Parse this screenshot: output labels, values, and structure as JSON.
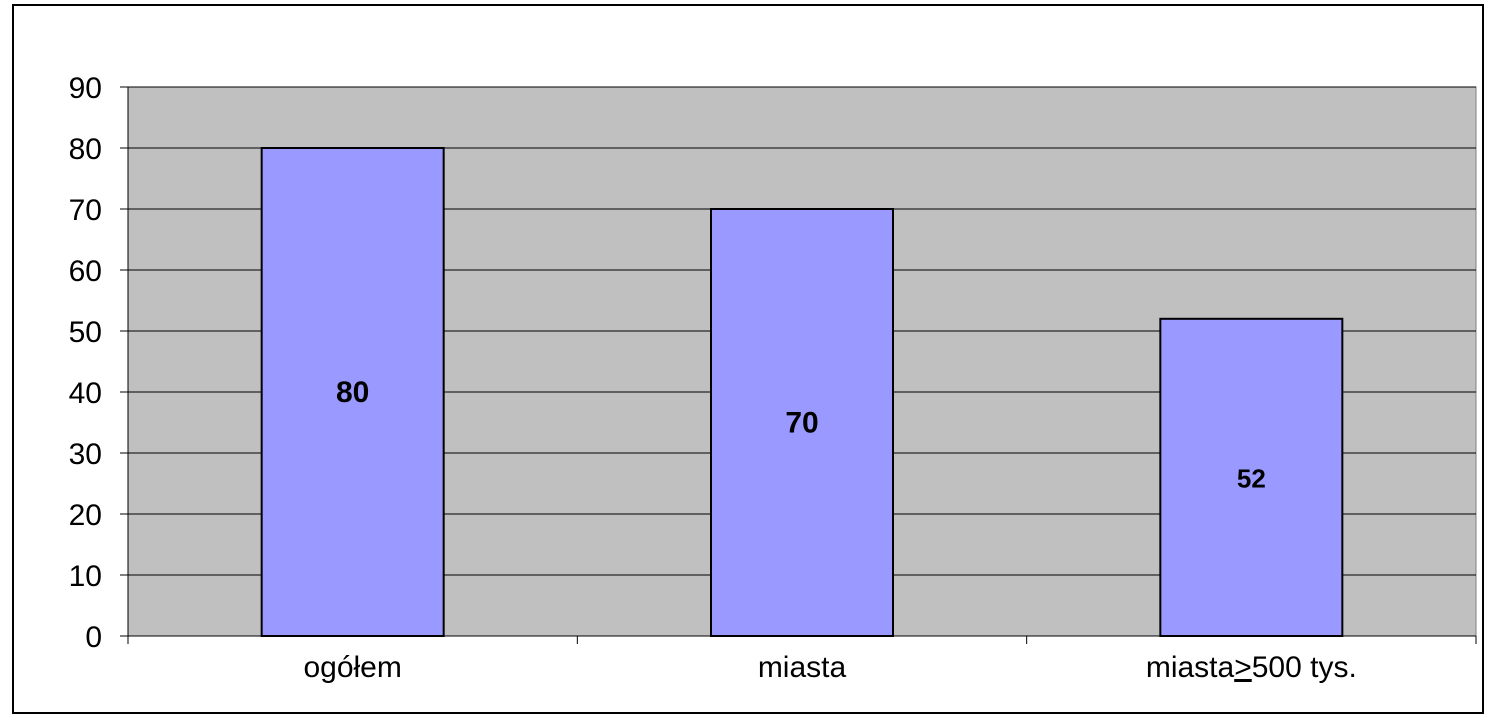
{
  "chart_data": {
    "type": "bar",
    "categories": [
      "ogółem",
      "miasta",
      "miasta≥500 tys."
    ],
    "category_label_parts": [
      {
        "before": "ogółem",
        "underlined": "",
        "after": ""
      },
      {
        "before": "miasta",
        "underlined": "",
        "after": ""
      },
      {
        "before": "miasta",
        "underlined": ">",
        "after": "500 tys."
      }
    ],
    "values": [
      80,
      70,
      52
    ],
    "data_labels": [
      "80",
      "70",
      "52"
    ],
    "title": "",
    "xlabel": "",
    "ylabel": "",
    "ylim": [
      0,
      90
    ],
    "y_ticks": [
      0,
      10,
      20,
      30,
      40,
      50,
      60,
      70,
      80,
      90
    ],
    "grid": true,
    "colors": {
      "plot_background": "#c0c0c0",
      "bar_fill": "#9999ff",
      "bar_stroke": "#000000",
      "grid": "#000000"
    }
  }
}
